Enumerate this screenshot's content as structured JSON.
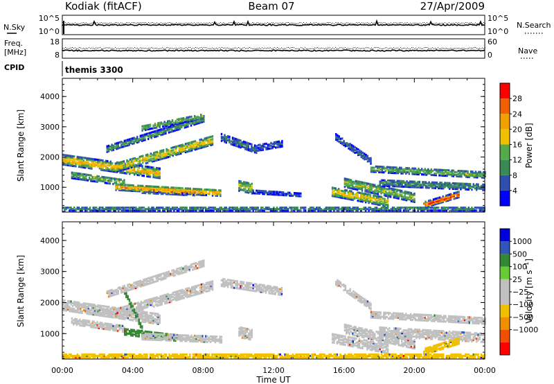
{
  "header": {
    "station": "Kodiak (fitACF)",
    "beam": "Beam 07",
    "date": "27/Apr/2009"
  },
  "strips": {
    "nsky": {
      "label": "N.Sky",
      "left_ticks": [
        "10^5",
        "10^0"
      ],
      "right_label": "N.Search",
      "right_ticks": [
        "10^5",
        "10^0"
      ]
    },
    "freq": {
      "label": "Freq.",
      "unit": "[MHz]",
      "left_ticks": [
        "18",
        "8"
      ],
      "right_label": "Nave",
      "right_ticks": [
        "60",
        "0"
      ]
    },
    "cpid": {
      "label": "CPID",
      "value": "themis 3300"
    }
  },
  "colors": {
    "power_scale": [
      "#0000ff",
      "#2f4fb0",
      "#3a8a55",
      "#55aa4a",
      "#f0c000",
      "#f0a000",
      "#f06000",
      "#ff0000"
    ],
    "velocity_scale": [
      "#ff0000",
      "#f05000",
      "#f09000",
      "#f0c000",
      "#c0c0c0",
      "#c0c0c0",
      "#66cc33",
      "#338833",
      "#3355bb",
      "#0000dd"
    ]
  },
  "chart_data": [
    {
      "type": "heatmap",
      "title": "",
      "xlabel": "",
      "ylabel": "Slant Range [km]",
      "x_ticks": [
        "00:00",
        "04:00",
        "08:00",
        "12:00",
        "16:00",
        "20:00",
        "00:00"
      ],
      "y_ticks": [
        1000,
        2000,
        3000,
        4000
      ],
      "xlim_hours": [
        0,
        24
      ],
      "ylim_km": [
        180,
        4600
      ],
      "colorbar": {
        "label": "Power [dB]",
        "ticks": [
          4,
          8,
          12,
          16,
          20,
          24,
          28
        ],
        "range": [
          0,
          32
        ]
      },
      "features": [
        {
          "start_h": 0.0,
          "end_h": 5.5,
          "km_start": 1950,
          "km_end": 1500,
          "width_km": 320,
          "value": 20
        },
        {
          "start_h": 3.0,
          "end_h": 8.5,
          "km_start": 1700,
          "km_end": 2600,
          "width_km": 300,
          "value": 18
        },
        {
          "start_h": 0.5,
          "end_h": 3.5,
          "km_start": 1450,
          "km_end": 1200,
          "width_km": 220,
          "value": 14
        },
        {
          "start_h": 4.5,
          "end_h": 7.5,
          "km_start": 960,
          "km_end": 880,
          "width_km": 220,
          "value": 29
        },
        {
          "start_h": 3.0,
          "end_h": 9.0,
          "km_start": 1050,
          "km_end": 850,
          "width_km": 200,
          "value": 22
        },
        {
          "start_h": 2.5,
          "end_h": 8.0,
          "km_start": 2300,
          "km_end": 3300,
          "width_km": 180,
          "value": 12
        },
        {
          "start_h": 4.5,
          "end_h": 8.0,
          "km_start": 3000,
          "km_end": 3400,
          "width_km": 170,
          "value": 14
        },
        {
          "start_h": 9.0,
          "end_h": 11.0,
          "km_start": 2700,
          "km_end": 2300,
          "width_km": 260,
          "value": 8
        },
        {
          "start_h": 11.0,
          "end_h": 12.5,
          "km_start": 2350,
          "km_end": 2500,
          "width_km": 220,
          "value": 6
        },
        {
          "start_h": 10.0,
          "end_h": 10.8,
          "km_start": 1100,
          "km_end": 1000,
          "width_km": 350,
          "value": 16
        },
        {
          "start_h": 10.8,
          "end_h": 13.5,
          "km_start": 900,
          "km_end": 800,
          "width_km": 120,
          "value": 6
        },
        {
          "start_h": 15.3,
          "end_h": 18.5,
          "km_start": 900,
          "km_end": 550,
          "width_km": 300,
          "value": 18
        },
        {
          "start_h": 16.0,
          "end_h": 20.0,
          "km_start": 1200,
          "km_end": 700,
          "width_km": 300,
          "value": 15
        },
        {
          "start_h": 15.5,
          "end_h": 17.5,
          "km_start": 2700,
          "km_end": 1900,
          "width_km": 180,
          "value": 8
        },
        {
          "start_h": 17.5,
          "end_h": 24.0,
          "km_start": 1650,
          "km_end": 1450,
          "width_km": 200,
          "value": 14
        },
        {
          "start_h": 18.0,
          "end_h": 24.0,
          "km_start": 1200,
          "km_end": 1050,
          "width_km": 220,
          "value": 10
        },
        {
          "start_h": 20.5,
          "end_h": 22.5,
          "km_start": 450,
          "km_end": 800,
          "width_km": 180,
          "value": 28
        },
        {
          "start_h": 0.0,
          "end_h": 24.0,
          "km_start": 330,
          "km_end": 330,
          "width_km": 120,
          "value": 10
        }
      ]
    },
    {
      "type": "heatmap",
      "title": "",
      "xlabel": "Time UT",
      "ylabel": "Slant Range [km]",
      "x_ticks": [
        "00:00",
        "04:00",
        "08:00",
        "12:00",
        "16:00",
        "20:00",
        "00:00"
      ],
      "y_ticks": [
        1000,
        2000,
        3000,
        4000
      ],
      "xlim_hours": [
        0,
        24
      ],
      "ylim_km": [
        180,
        4600
      ],
      "colorbar": {
        "label": "Velocity [m s^-1]",
        "ticks": [
          "1000",
          "500",
          "100",
          "25",
          "−25",
          "−100",
          "−500",
          "−1000"
        ]
      },
      "features": [
        {
          "start_h": 0.0,
          "end_h": 5.5,
          "km_start": 1950,
          "km_end": 1500,
          "width_km": 320,
          "value": 0
        },
        {
          "start_h": 3.0,
          "end_h": 8.5,
          "km_start": 1700,
          "km_end": 2600,
          "width_km": 300,
          "value": 0
        },
        {
          "start_h": 0.5,
          "end_h": 3.5,
          "km_start": 1450,
          "km_end": 1200,
          "width_km": 220,
          "value": 0
        },
        {
          "start_h": 3.5,
          "end_h": 4.5,
          "km_start": 2400,
          "km_end": 1200,
          "width_km": 160,
          "value": 150
        },
        {
          "start_h": 3.5,
          "end_h": 6.5,
          "km_start": 1100,
          "km_end": 900,
          "width_km": 200,
          "value": 150
        },
        {
          "start_h": 4.5,
          "end_h": 9.0,
          "km_start": 960,
          "km_end": 860,
          "width_km": 220,
          "value": 0
        },
        {
          "start_h": 2.5,
          "end_h": 8.0,
          "km_start": 2300,
          "km_end": 3300,
          "width_km": 180,
          "value": 0
        },
        {
          "start_h": 9.0,
          "end_h": 12.5,
          "km_start": 2700,
          "km_end": 2400,
          "width_km": 260,
          "value": 0
        },
        {
          "start_h": 10.0,
          "end_h": 10.8,
          "km_start": 1100,
          "km_end": 1000,
          "width_km": 350,
          "value": 0
        },
        {
          "start_h": 15.3,
          "end_h": 18.5,
          "km_start": 900,
          "km_end": 550,
          "width_km": 300,
          "value": 0
        },
        {
          "start_h": 16.0,
          "end_h": 20.0,
          "km_start": 1200,
          "km_end": 700,
          "width_km": 300,
          "value": 0
        },
        {
          "start_h": 15.5,
          "end_h": 17.5,
          "km_start": 2700,
          "km_end": 1900,
          "width_km": 180,
          "value": 0
        },
        {
          "start_h": 17.5,
          "end_h": 24.0,
          "km_start": 1650,
          "km_end": 1450,
          "width_km": 200,
          "value": 0
        },
        {
          "start_h": 18.0,
          "end_h": 24.0,
          "km_start": 1100,
          "km_end": 900,
          "width_km": 280,
          "value": 0
        },
        {
          "start_h": 20.5,
          "end_h": 22.5,
          "km_start": 450,
          "km_end": 800,
          "width_km": 180,
          "value": -80
        },
        {
          "start_h": 0.0,
          "end_h": 24.0,
          "km_start": 330,
          "km_end": 330,
          "width_km": 120,
          "value": -60
        }
      ]
    }
  ]
}
